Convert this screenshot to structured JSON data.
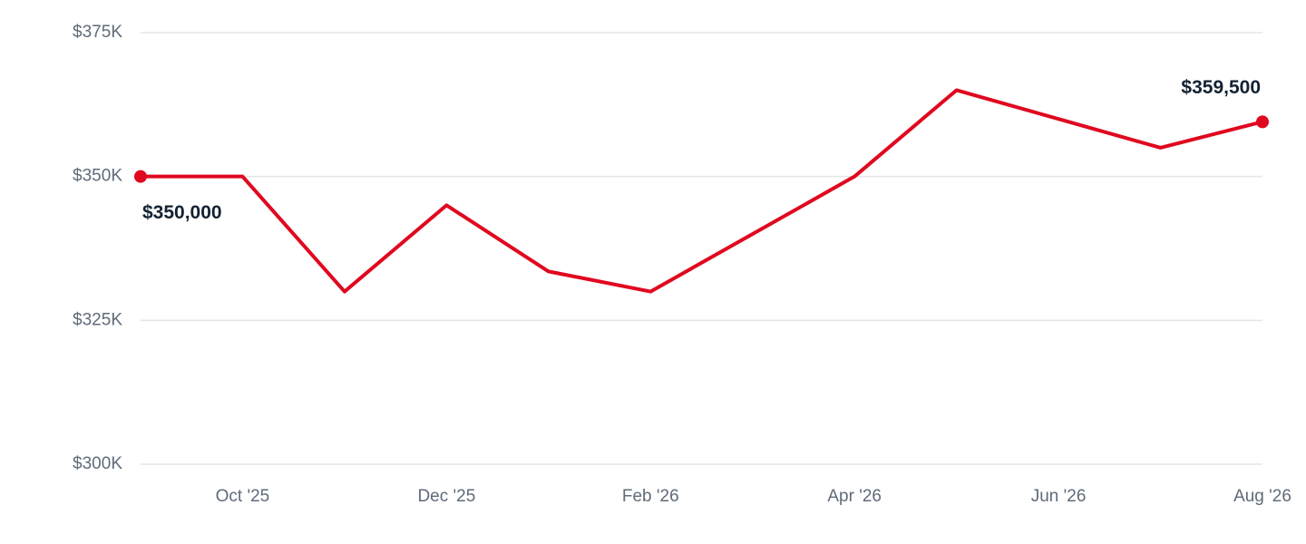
{
  "chart_data": {
    "type": "line",
    "categories": [
      null,
      "Oct '25",
      null,
      "Dec '25",
      null,
      "Feb '26",
      null,
      "Apr '26",
      null,
      "Jun '26",
      null,
      "Aug '26"
    ],
    "series": [
      {
        "color": "#e0081f",
        "values": [
          350000,
          350000,
          330000,
          345000,
          333500,
          330000,
          340000,
          350000,
          365000,
          360000,
          355000,
          359500
        ],
        "value_labels": [
          "$350,000",
          null,
          null,
          null,
          null,
          null,
          null,
          null,
          null,
          null,
          null,
          "$359,500"
        ]
      }
    ],
    "ylim": [
      300000,
      375000
    ],
    "yticks": [
      {
        "value": 300000,
        "label": "$300K"
      },
      {
        "value": 325000,
        "label": "$325K"
      },
      {
        "value": 350000,
        "label": "$350K"
      },
      {
        "value": 375000,
        "label": "$375K"
      }
    ],
    "grid": true
  }
}
